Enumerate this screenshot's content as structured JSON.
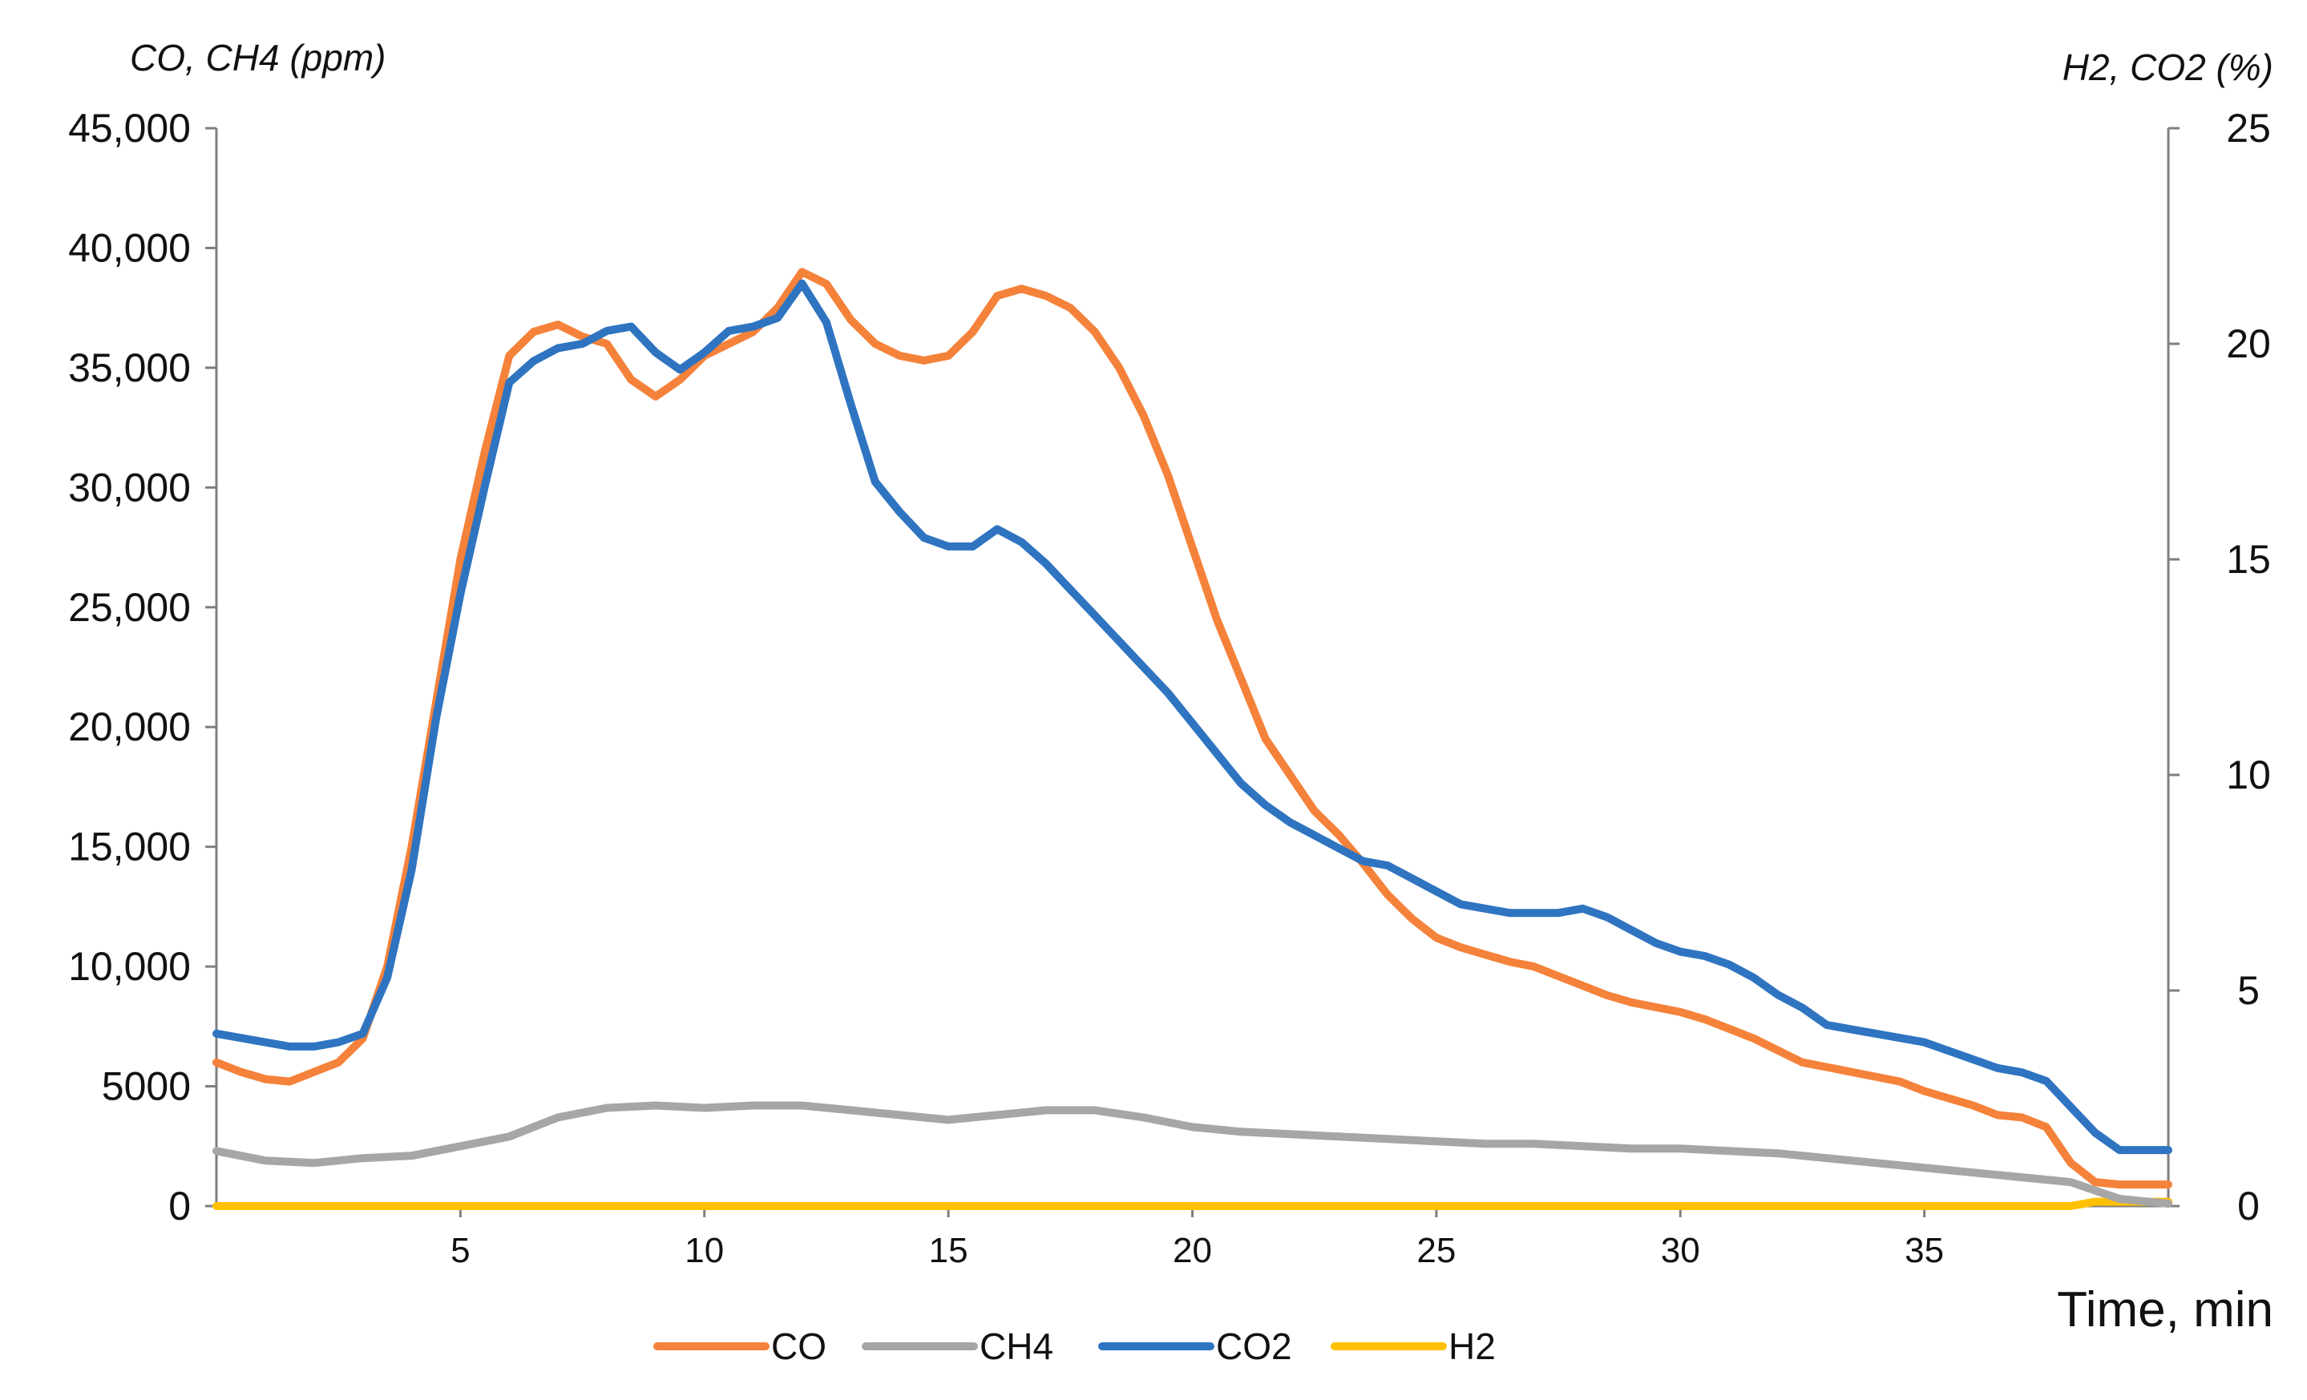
{
  "chart_data": {
    "type": "line",
    "title": "",
    "xlabel": "Time, min",
    "ylabel_left": "CO, CH4 (ppm)",
    "ylabel_right": "H2, CO2 (%)",
    "xlim": [
      0,
      40
    ],
    "ylim_left": [
      0,
      45000
    ],
    "ylim_right": [
      0,
      25
    ],
    "x_ticks": [
      5,
      10,
      15,
      20,
      25,
      30,
      35
    ],
    "x_tick_labels": [
      "5",
      "10",
      "15",
      "20",
      "25",
      "30",
      "35"
    ],
    "y_left_ticks": [
      0,
      5000,
      10000,
      15000,
      20000,
      25000,
      30000,
      35000,
      40000,
      45000
    ],
    "y_left_tick_labels": [
      "0",
      "5000",
      "10,000",
      "15,000",
      "20,000",
      "25,000",
      "30,000",
      "35,000",
      "40,000",
      "45,000"
    ],
    "y_right_ticks": [
      0,
      5,
      10,
      15,
      20,
      25
    ],
    "y_right_tick_labels": [
      "0",
      "5",
      "10",
      "15",
      "20",
      "25"
    ],
    "grid": false,
    "legend_position": "bottom",
    "series": [
      {
        "name": "CO",
        "axis": "left",
        "color": "#F5823A",
        "x": [
          0,
          0.5,
          1,
          1.5,
          2,
          2.5,
          3,
          3.5,
          4,
          4.5,
          5,
          5.5,
          6,
          6.5,
          7,
          7.5,
          8,
          8.5,
          9,
          9.5,
          10,
          10.5,
          11,
          11.5,
          12,
          12.5,
          13,
          13.5,
          14,
          14.5,
          15,
          15.5,
          16,
          16.5,
          17,
          17.5,
          18,
          18.5,
          19,
          19.5,
          20,
          20.5,
          21,
          21.5,
          22,
          22.5,
          23,
          23.5,
          24,
          24.5,
          25,
          25.5,
          26,
          26.5,
          27,
          27.5,
          28,
          28.5,
          29,
          29.5,
          30,
          30.5,
          31,
          31.5,
          32,
          32.5,
          33,
          33.5,
          34,
          34.5,
          35,
          35.5,
          36,
          36.5,
          37,
          37.5,
          38,
          38.5,
          39,
          39.5,
          40
        ],
        "y": [
          6000,
          5600,
          5300,
          5200,
          5600,
          6000,
          7000,
          10000,
          15000,
          21000,
          27000,
          31500,
          35500,
          36500,
          36800,
          36300,
          36000,
          34500,
          33800,
          34500,
          35500,
          36000,
          36500,
          37500,
          39000,
          38500,
          37000,
          36000,
          35500,
          35300,
          35500,
          36500,
          38000,
          38300,
          38000,
          37500,
          36500,
          35000,
          33000,
          30500,
          27500,
          24500,
          22000,
          19500,
          18000,
          16500,
          15500,
          14300,
          13000,
          12000,
          11200,
          10800,
          10500,
          10200,
          10000,
          9600,
          9200,
          8800,
          8500,
          8300,
          8100,
          7800,
          7400,
          7000,
          6500,
          6000,
          5800,
          5600,
          5400,
          5200,
          4800,
          4500,
          4200,
          3800,
          3700,
          3300,
          1800,
          1000,
          900,
          900,
          900
        ]
      },
      {
        "name": "CH4",
        "axis": "left",
        "color": "#A6A6A6",
        "x": [
          0,
          1,
          2,
          3,
          4,
          5,
          6,
          7,
          8,
          9,
          10,
          11,
          12,
          13,
          14,
          15,
          16,
          17,
          18,
          19,
          20,
          21,
          22,
          23,
          24,
          25,
          26,
          27,
          28,
          29,
          30,
          31,
          32,
          33,
          34,
          35,
          36,
          37,
          38,
          39,
          40
        ],
        "y": [
          2300,
          1900,
          1800,
          2000,
          2100,
          2500,
          2900,
          3700,
          4100,
          4200,
          4100,
          4200,
          4200,
          4000,
          3800,
          3600,
          3800,
          4000,
          4000,
          3700,
          3300,
          3100,
          3000,
          2900,
          2800,
          2700,
          2600,
          2600,
          2500,
          2400,
          2400,
          2300,
          2200,
          2000,
          1800,
          1600,
          1400,
          1200,
          1000,
          300,
          100
        ]
      },
      {
        "name": "CO2",
        "axis": "right",
        "color": "#2F74C0",
        "x": [
          0,
          0.5,
          1,
          1.5,
          2,
          2.5,
          3,
          3.5,
          4,
          4.5,
          5,
          5.5,
          6,
          6.5,
          7,
          7.5,
          8,
          8.5,
          9,
          9.5,
          10,
          10.5,
          11,
          11.5,
          12,
          12.5,
          13,
          13.5,
          14,
          14.5,
          15,
          15.5,
          16,
          16.5,
          17,
          17.5,
          18,
          18.5,
          19,
          19.5,
          20,
          20.5,
          21,
          21.5,
          22,
          22.5,
          23,
          23.5,
          24,
          24.5,
          25,
          25.5,
          26,
          26.5,
          27,
          27.5,
          28,
          28.5,
          29,
          29.5,
          30,
          30.5,
          31,
          31.5,
          32,
          32.5,
          33,
          33.5,
          34,
          34.5,
          35,
          35.5,
          36,
          36.5,
          37,
          37.5,
          38,
          38.5,
          39,
          39.5,
          40
        ],
        "y": [
          4.0,
          3.9,
          3.8,
          3.7,
          3.7,
          3.8,
          4.0,
          5.3,
          7.8,
          11.3,
          14.2,
          16.7,
          19.1,
          19.6,
          19.9,
          20.0,
          20.3,
          20.4,
          19.8,
          19.4,
          19.8,
          20.3,
          20.4,
          20.6,
          21.4,
          20.5,
          18.6,
          16.8,
          16.1,
          15.5,
          15.3,
          15.3,
          15.7,
          15.4,
          14.9,
          14.3,
          13.7,
          13.1,
          12.5,
          11.9,
          11.2,
          10.5,
          9.8,
          9.3,
          8.9,
          8.6,
          8.3,
          8.0,
          7.9,
          7.6,
          7.3,
          7.0,
          6.9,
          6.8,
          6.8,
          6.8,
          6.9,
          6.7,
          6.4,
          6.1,
          5.9,
          5.8,
          5.6,
          5.3,
          4.9,
          4.6,
          4.2,
          4.1,
          4.0,
          3.9,
          3.8,
          3.6,
          3.4,
          3.2,
          3.1,
          2.9,
          2.3,
          1.7,
          1.3,
          1.3,
          1.3
        ]
      },
      {
        "name": "H2",
        "axis": "right",
        "color": "#FFC000",
        "x": [
          0,
          37,
          38,
          38.5,
          39,
          40
        ],
        "y": [
          0,
          0,
          0,
          0.1,
          0.1,
          0.1
        ]
      }
    ]
  }
}
